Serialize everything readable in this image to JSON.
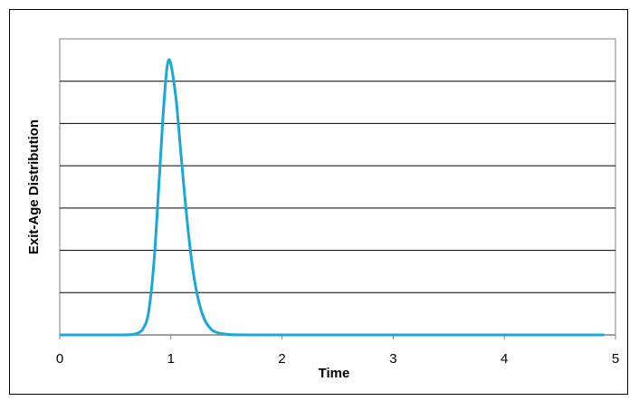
{
  "chart_data": {
    "type": "line",
    "title": "",
    "xlabel": "Time",
    "ylabel": "Exit-Age Distribution",
    "xlim": [
      0,
      5
    ],
    "ylim": [
      0,
      7
    ],
    "x_ticks": [
      "0",
      "1",
      "2",
      "3",
      "4",
      "5"
    ],
    "grid": "horizontal",
    "legend": "none",
    "series": [
      {
        "color": "#1aa7d9",
        "x": [
          0,
          0.5,
          0.6,
          0.65,
          0.7,
          0.75,
          0.8,
          0.85,
          0.9,
          0.93,
          0.96,
          0.98,
          1.0,
          1.02,
          1.05,
          1.08,
          1.1,
          1.15,
          1.2,
          1.25,
          1.3,
          1.35,
          1.4,
          1.5,
          1.6,
          1.8,
          2.0,
          3.0,
          4.0,
          4.9
        ],
        "y": [
          0,
          0,
          0.002,
          0.01,
          0.04,
          0.15,
          0.55,
          1.8,
          3.9,
          5.2,
          6.2,
          6.5,
          6.4,
          6.1,
          5.5,
          4.6,
          4.0,
          2.6,
          1.5,
          0.8,
          0.38,
          0.17,
          0.07,
          0.015,
          0.004,
          0,
          0,
          0,
          0,
          0
        ]
      }
    ]
  }
}
